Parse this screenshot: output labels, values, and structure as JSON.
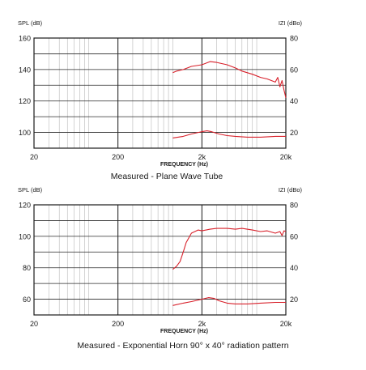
{
  "chart_data": [
    {
      "type": "line",
      "title": "Measured - Plane Wave Tube",
      "xlabel": "FREQUENCY (Hz)",
      "xscale": "log",
      "xlim": [
        20,
        20000
      ],
      "x_ticks": [
        20,
        200,
        2000,
        20000
      ],
      "x_tick_labels": [
        "20",
        "200",
        "2k",
        "20k"
      ],
      "ylabel_left": "SPL (dB)",
      "ylim_left": [
        90,
        160
      ],
      "y_ticks_left": [
        100,
        120,
        140,
        160
      ],
      "y_tick_labels_left": [
        "100",
        "120",
        "140",
        "160"
      ],
      "ylabel_right": "IZI (dBo)",
      "ylim_right": [
        10,
        80
      ],
      "y_ticks_right": [
        20,
        40,
        60,
        80
      ],
      "y_tick_labels_right": [
        "20",
        "40",
        "60",
        "80"
      ],
      "grid": true,
      "line_color": "#d8202a",
      "series": [
        {
          "axis": "left",
          "points": [
            [
              900,
              138
            ],
            [
              1000,
              139
            ],
            [
              1200,
              140
            ],
            [
              1500,
              142
            ],
            [
              2000,
              143
            ],
            [
              2500,
              145
            ],
            [
              3000,
              144.5
            ],
            [
              4000,
              143
            ],
            [
              5000,
              141
            ],
            [
              6000,
              139
            ],
            [
              8000,
              137
            ],
            [
              10000,
              135
            ],
            [
              12000,
              134
            ],
            [
              15000,
              132
            ],
            [
              16000,
              135
            ],
            [
              17000,
              129
            ],
            [
              18000,
              133
            ],
            [
              19000,
              127
            ],
            [
              20000,
              122
            ]
          ]
        },
        {
          "axis": "right",
          "points": [
            [
              900,
              16.5
            ],
            [
              1200,
              17.5
            ],
            [
              1500,
              19
            ],
            [
              2000,
              20.5
            ],
            [
              2300,
              21
            ],
            [
              2600,
              20.5
            ],
            [
              3200,
              19
            ],
            [
              4000,
              18
            ],
            [
              5000,
              17.5
            ],
            [
              7000,
              17
            ],
            [
              10000,
              17
            ],
            [
              15000,
              17.5
            ],
            [
              20000,
              17.5
            ]
          ]
        }
      ]
    },
    {
      "type": "line",
      "title": "Measured - Exponential Horn 90° x 40° radiation pattern",
      "xlabel": "FREQUENCY (Hz)",
      "xscale": "log",
      "xlim": [
        20,
        20000
      ],
      "x_ticks": [
        20,
        200,
        2000,
        20000
      ],
      "x_tick_labels": [
        "20",
        "200",
        "2k",
        "20k"
      ],
      "ylabel_left": "SPL (dB)",
      "ylim_left": [
        50,
        120
      ],
      "y_ticks_left": [
        60,
        80,
        100,
        120
      ],
      "y_tick_labels_left": [
        "60",
        "80",
        "100",
        "120"
      ],
      "ylabel_right": "IZI (dBo)",
      "ylim_right": [
        10,
        80
      ],
      "y_ticks_right": [
        20,
        40,
        60,
        80
      ],
      "y_tick_labels_right": [
        "20",
        "40",
        "60",
        "80"
      ],
      "grid": true,
      "line_color": "#d8202a",
      "series": [
        {
          "axis": "left",
          "points": [
            [
              900,
              79
            ],
            [
              1000,
              81
            ],
            [
              1100,
              84
            ],
            [
              1200,
              90
            ],
            [
              1300,
              96
            ],
            [
              1500,
              102
            ],
            [
              1800,
              104
            ],
            [
              2000,
              103.5
            ],
            [
              2500,
              104.5
            ],
            [
              3000,
              105
            ],
            [
              4000,
              105
            ],
            [
              5000,
              104.5
            ],
            [
              6000,
              105
            ],
            [
              8000,
              104
            ],
            [
              10000,
              103
            ],
            [
              12000,
              103.5
            ],
            [
              15000,
              102
            ],
            [
              17000,
              103
            ],
            [
              18000,
              100.5
            ],
            [
              19000,
              103.5
            ],
            [
              20000,
              103
            ]
          ]
        },
        {
          "axis": "right",
          "points": [
            [
              900,
              16
            ],
            [
              1200,
              17.5
            ],
            [
              1500,
              18.5
            ],
            [
              2000,
              20
            ],
            [
              2400,
              21
            ],
            [
              2800,
              20.5
            ],
            [
              3200,
              19
            ],
            [
              4000,
              17.5
            ],
            [
              5000,
              17
            ],
            [
              7000,
              17
            ],
            [
              10000,
              17.5
            ],
            [
              15000,
              18
            ],
            [
              20000,
              18
            ]
          ]
        }
      ]
    }
  ]
}
